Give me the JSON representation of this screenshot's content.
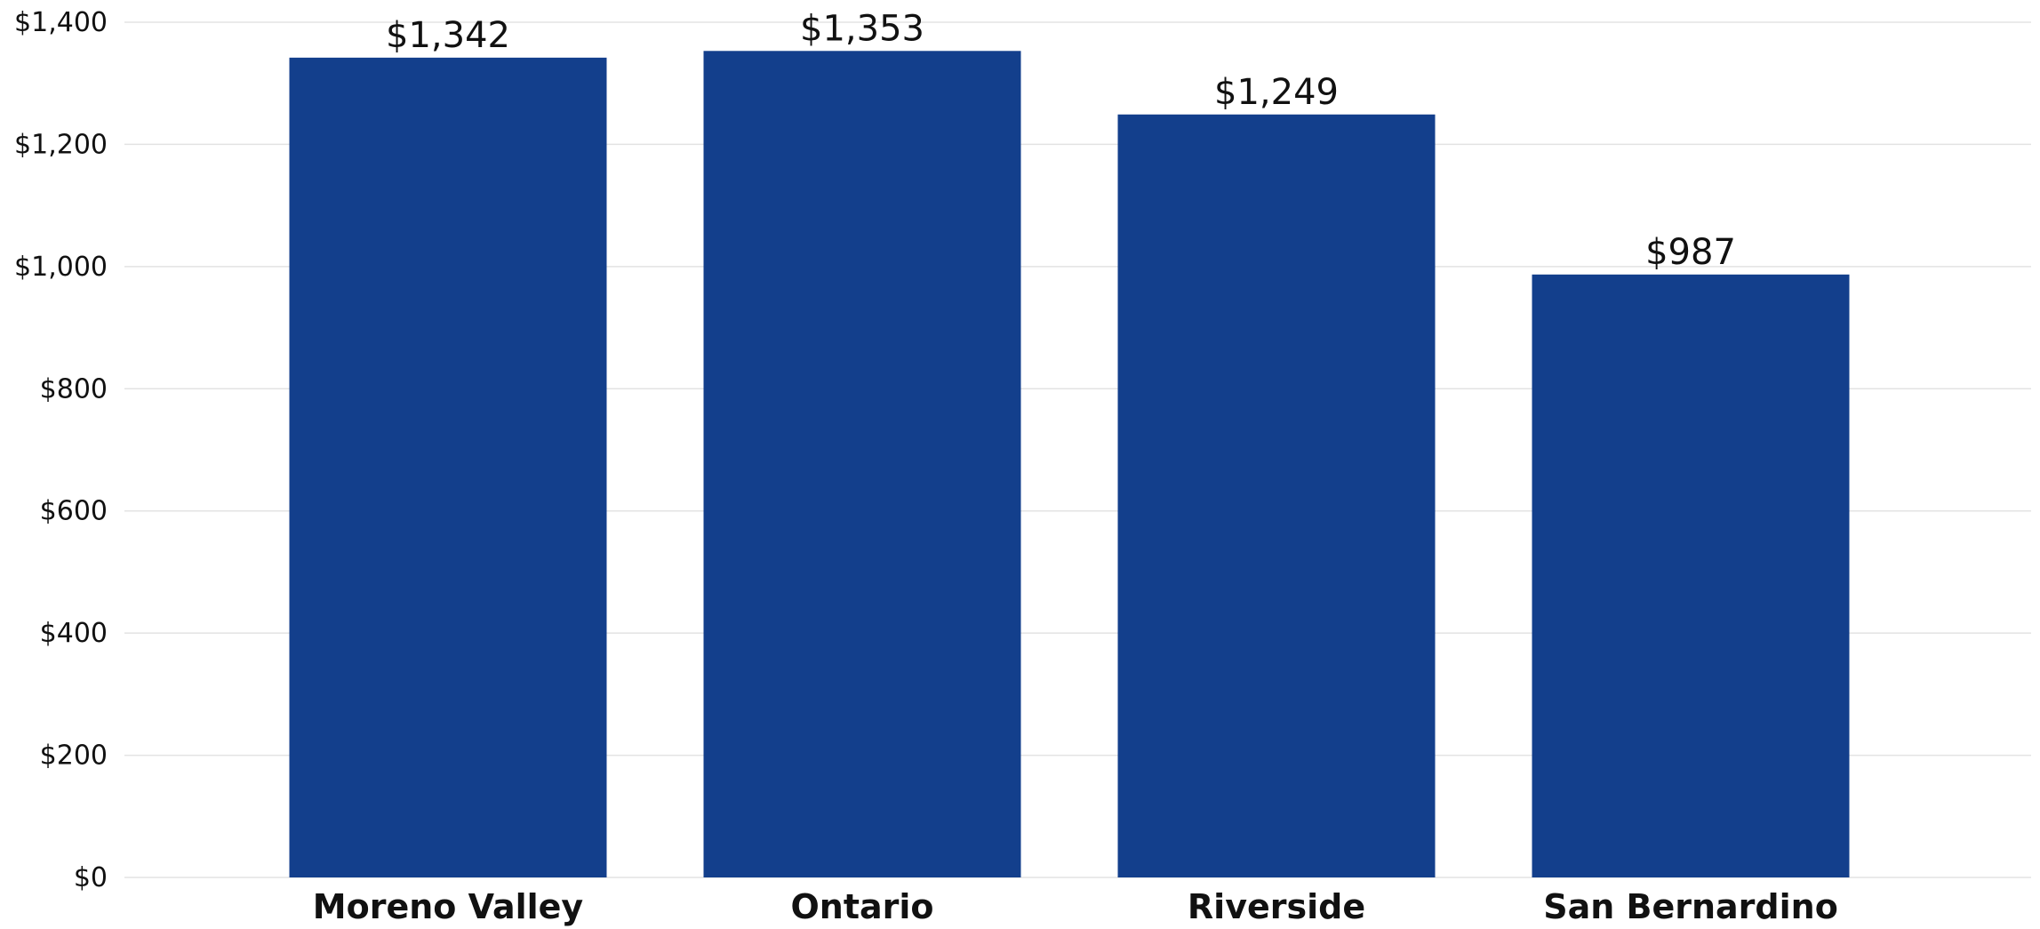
{
  "chart_data": {
    "type": "bar",
    "title": "",
    "xlabel": "",
    "ylabel": "",
    "categories": [
      "Moreno Valley",
      "Ontario",
      "Riverside",
      "San Bernardino"
    ],
    "values": [
      1342,
      1353,
      1249,
      987
    ],
    "data_labels": [
      "$1,342",
      "$1,353",
      "$1,249",
      "$987"
    ],
    "ylim": [
      0,
      1400
    ],
    "yticks": [
      0,
      200,
      400,
      600,
      800,
      1000,
      1200,
      1400
    ],
    "ytick_labels": [
      "$0",
      "$200",
      "$400",
      "$600",
      "$800",
      "$1,000",
      "$1,200",
      "$1,400"
    ],
    "grid": true,
    "legend": "none",
    "colors": {
      "bar": "#133f8c",
      "grid": "#e3e3e3",
      "text": "#111111"
    }
  }
}
